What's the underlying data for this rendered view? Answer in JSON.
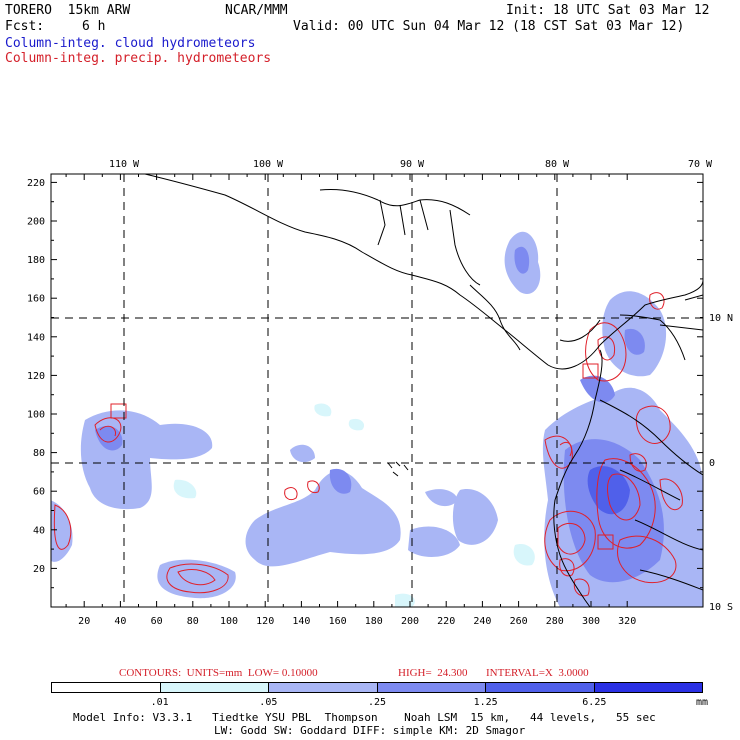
{
  "header": {
    "model": "TORERO  15km ARW",
    "org": "NCAR/MMM",
    "init": "Init: 18 UTC Sat 03 Mar 12",
    "fcst_label": "Fcst:",
    "fcst_value": "6 h",
    "valid": "Valid: 00 UTC Sun 04 Mar 12 (18 CST Sat 03 Mar 12)",
    "field1": "Column-integ. cloud hydrometeors",
    "field2": "Column-integ. precip. hydrometeors"
  },
  "map": {
    "lon_labels": [
      "110 W",
      "100 W",
      "90 W",
      "80 W",
      "70 W"
    ],
    "lat_labels": [
      "10 N",
      "0",
      "10 S"
    ],
    "x_ticks": [
      "20",
      "40",
      "60",
      "80",
      "100",
      "120",
      "140",
      "160",
      "180",
      "200",
      "220",
      "240",
      "260",
      "280",
      "300",
      "320"
    ],
    "y_ticks": [
      "220",
      "200",
      "180",
      "160",
      "140",
      "120",
      "100",
      "80",
      "60",
      "40",
      "20"
    ],
    "cloud_color": "#5a6cf0",
    "precip_color": "#e0202a"
  },
  "contour_info": {
    "label": "CONTOURS:  UNITS=mm  LOW= 0.10000",
    "high": "HIGH=  24.300",
    "interval": "INTERVAL=X  3.0000"
  },
  "colorbar": {
    "labels": [
      ".01",
      ".05",
      ".25",
      "1.25",
      "6.25"
    ],
    "unit": "mm",
    "colors": [
      "#ffffff",
      "#d8f6fb",
      "#a9b6f5",
      "#7d8af0",
      "#5060ea",
      "#2a30e4"
    ]
  },
  "model_info": {
    "line1": "Model Info: V3.3.1   Tiedtke YSU PBL  Thompson    Noah LSM  15 km,   44 levels,   55 sec",
    "line2": "LW: Godd SW: Goddard DIFF: simple KM: 2D Smagor"
  }
}
